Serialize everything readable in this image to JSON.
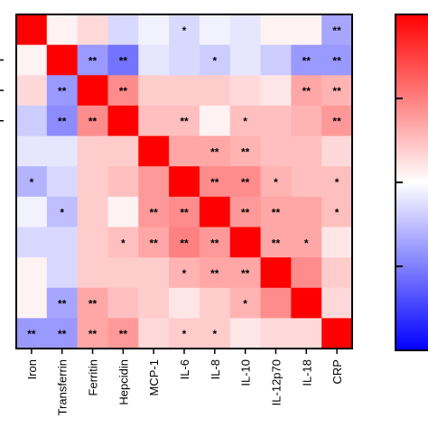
{
  "chart_data": {
    "type": "heatmap",
    "title": "",
    "xlabel": "",
    "ylabel": "",
    "x_labels": [
      "Iron",
      "Transferrin",
      "Ferritin",
      "Hepcidin",
      "MCP-1",
      "IL-6",
      "IL-8",
      "IL-10",
      "IL-12p70",
      "IL-18",
      "CRP"
    ],
    "value_range": [
      -1,
      1
    ],
    "colormap": {
      "low": "#0000ff",
      "mid": "#ffffff",
      "high": "#ff0000"
    },
    "colorbar_tick_labels": [],
    "values": [
      [
        1.0,
        0.05,
        0.15,
        -0.15,
        -0.05,
        -0.15,
        -0.05,
        -0.1,
        0.05,
        0.05,
        -0.35
      ],
      [
        0.05,
        1.0,
        -0.4,
        -0.55,
        -0.1,
        -0.15,
        -0.2,
        -0.1,
        -0.2,
        -0.4,
        -0.4
      ],
      [
        0.15,
        -0.4,
        1.0,
        0.45,
        0.2,
        0.2,
        0.2,
        0.15,
        0.1,
        0.35,
        0.3
      ],
      [
        -0.2,
        -0.45,
        0.45,
        1.0,
        0.25,
        0.25,
        0.05,
        0.25,
        0.25,
        0.3,
        0.4
      ],
      [
        -0.1,
        -0.1,
        0.2,
        0.2,
        1.0,
        0.35,
        0.35,
        0.3,
        0.25,
        0.25,
        0.15
      ],
      [
        -0.3,
        -0.15,
        0.2,
        0.25,
        0.4,
        1.0,
        0.45,
        0.45,
        0.3,
        0.25,
        0.25
      ],
      [
        -0.05,
        -0.25,
        0.2,
        0.05,
        0.4,
        0.45,
        1.0,
        0.4,
        0.35,
        0.35,
        0.25
      ],
      [
        -0.15,
        -0.15,
        0.2,
        0.25,
        0.35,
        0.5,
        0.4,
        1.0,
        0.35,
        0.35,
        0.1
      ],
      [
        0.05,
        -0.15,
        0.2,
        0.2,
        0.2,
        0.3,
        0.35,
        0.35,
        1.0,
        0.45,
        0.2
      ],
      [
        0.05,
        -0.35,
        0.35,
        0.25,
        0.2,
        0.1,
        0.2,
        0.3,
        0.45,
        1.0,
        0.15
      ],
      [
        -0.4,
        -0.4,
        0.35,
        0.4,
        0.15,
        0.2,
        0.2,
        0.1,
        0.15,
        0.15,
        1.0
      ]
    ],
    "significance": [
      [
        "",
        "",
        "",
        "",
        "",
        "*",
        "",
        "",
        "",
        "",
        "**"
      ],
      [
        "",
        "",
        "**",
        "**",
        "",
        "",
        "*",
        "",
        "",
        "**",
        "**"
      ],
      [
        "",
        "**",
        "",
        "**",
        "",
        "",
        "",
        "",
        "",
        "**",
        "**"
      ],
      [
        "",
        "**",
        "**",
        "",
        "",
        "**",
        "",
        "*",
        "",
        "",
        "**"
      ],
      [
        "",
        "",
        "",
        "",
        "",
        "",
        "**",
        "**",
        "",
        "",
        ""
      ],
      [
        "*",
        "",
        "",
        "",
        "",
        "",
        "**",
        "**",
        "*",
        "",
        "*"
      ],
      [
        "",
        "*",
        "",
        "",
        "**",
        "**",
        "",
        "**",
        "**",
        "",
        "*"
      ],
      [
        "",
        "",
        "",
        "*",
        "**",
        "**",
        "**",
        "",
        "**",
        "*",
        ""
      ],
      [
        "",
        "",
        "",
        "",
        "",
        "*",
        "**",
        "**",
        "",
        "",
        ""
      ],
      [
        "",
        "**",
        "**",
        "",
        "",
        "",
        "",
        "*",
        "",
        "",
        ""
      ],
      [
        "**",
        "**",
        "**",
        "**",
        "",
        "*",
        "*",
        "",
        "",
        "",
        ""
      ]
    ]
  }
}
